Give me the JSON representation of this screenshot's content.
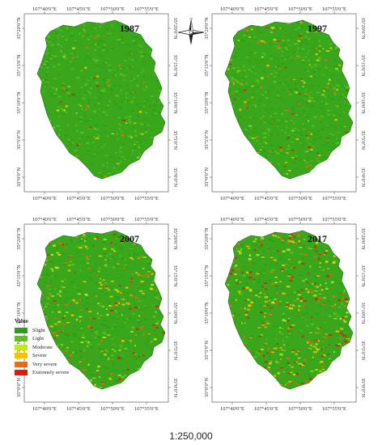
{
  "panels": [
    {
      "year": "1987"
    },
    {
      "year": "1997"
    },
    {
      "year": "2007"
    },
    {
      "year": "2017"
    }
  ],
  "lon_labels": [
    "107°40'0\"E",
    "107°45'0\"E",
    "107°50'0\"E",
    "107°55'0\"E"
  ],
  "lat_labels": [
    "35°20'0\"N",
    "35°15'0\"N",
    "35°10'0\"N",
    "35°5'0\"N",
    "35°0'0\"N"
  ],
  "legend": {
    "title": "Value",
    "classes": [
      {
        "label": "Slight",
        "color": "#2e9e1a"
      },
      {
        "label": "Light",
        "color": "#5cc21f"
      },
      {
        "label": "Moderate",
        "color": "#c8e61e"
      },
      {
        "label": "Severe",
        "color": "#f5c400"
      },
      {
        "label": "Very severe",
        "color": "#f26a0f"
      },
      {
        "label": "Extremely severe",
        "color": "#e8140f"
      }
    ]
  },
  "compass": {
    "n": "N",
    "e": "E",
    "s": "S",
    "w": "W"
  },
  "scale_text": "1:250,000"
}
